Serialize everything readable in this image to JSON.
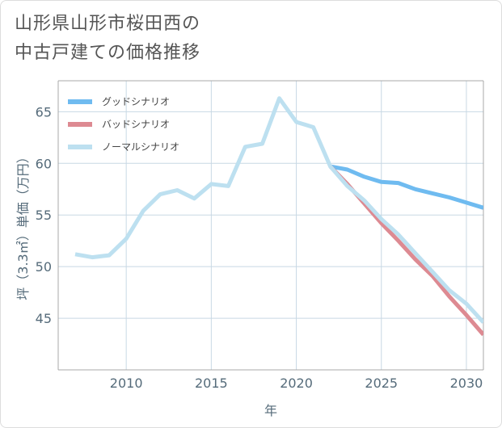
{
  "chart_data": {
    "type": "line",
    "title_line1": "山形県山形市桜田西の",
    "title_line2": "中古戸建ての価格推移",
    "xlabel": "年",
    "ylabel": "坪（3.3㎡）単価（万円）",
    "xlim": [
      2006,
      2031
    ],
    "ylim": [
      40,
      68
    ],
    "xticks": [
      2010,
      2015,
      2020,
      2025,
      2030
    ],
    "yticks": [
      45,
      50,
      55,
      60,
      65
    ],
    "grid": true,
    "legend_position": "top-left",
    "series": [
      {
        "name": "グッドシナリオ",
        "color": "#6fbbf0",
        "x": [
          2022,
          2023,
          2024,
          2025,
          2026,
          2027,
          2028,
          2029,
          2030,
          2031
        ],
        "values": [
          59.7,
          59.4,
          58.7,
          58.2,
          58.1,
          57.5,
          57.1,
          56.7,
          56.2,
          55.7
        ]
      },
      {
        "name": "バッドシナリオ",
        "color": "#dd8a92",
        "x": [
          2022,
          2023,
          2024,
          2025,
          2026,
          2027,
          2028,
          2029,
          2030,
          2031
        ],
        "values": [
          59.7,
          58.0,
          56.1,
          54.2,
          52.5,
          50.7,
          49.1,
          47.1,
          45.3,
          43.4
        ]
      },
      {
        "name": "ノーマルシナリオ",
        "color": "#bde0f0",
        "x": [
          2007,
          2008,
          2009,
          2010,
          2011,
          2012,
          2013,
          2014,
          2015,
          2016,
          2017,
          2018,
          2019,
          2020,
          2021,
          2022,
          2023,
          2024,
          2025,
          2026,
          2027,
          2028,
          2029,
          2030,
          2031
        ],
        "values": [
          51.2,
          50.9,
          51.1,
          52.7,
          55.4,
          57.0,
          57.4,
          56.6,
          58.0,
          57.8,
          61.6,
          61.9,
          66.3,
          64.0,
          63.5,
          59.7,
          57.8,
          56.4,
          54.6,
          53.1,
          51.3,
          49.5,
          47.7,
          46.4,
          44.6
        ]
      }
    ]
  }
}
